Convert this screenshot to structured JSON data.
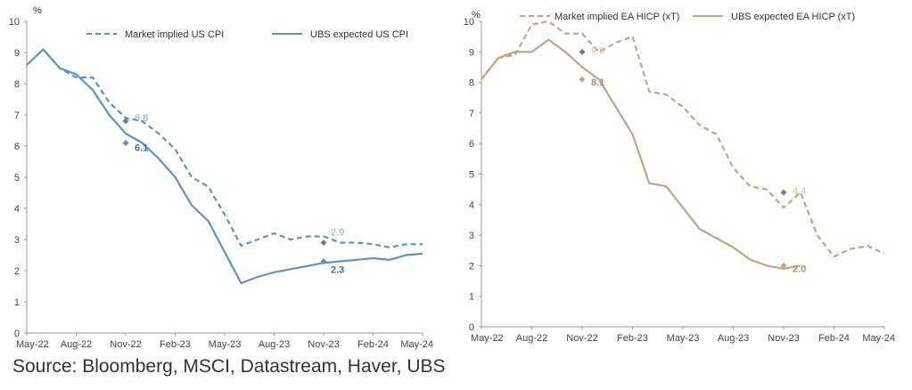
{
  "source": "Source: Bloomberg, MSCI, Datastream, Haver, UBS",
  "chart_data": [
    {
      "type": "line",
      "ylabel": "%",
      "ylim": [
        0,
        10
      ],
      "y_ticks": [
        0,
        1,
        2,
        3,
        4,
        5,
        6,
        7,
        8,
        9,
        10
      ],
      "x_tick_labels": [
        "May-22",
        "Aug-22",
        "Nov-22",
        "Feb-23",
        "May-23",
        "Aug-23",
        "Nov-23",
        "Feb-24",
        "May-24"
      ],
      "legend_position": "top",
      "grid": false,
      "colors": {
        "series": "#5b93c3",
        "label_light": "#7fa9ce",
        "label_dark": "#3b6f9e"
      },
      "series": [
        {
          "name": "Market implied US CPI",
          "style": "dashed",
          "values": [
            8.6,
            9.1,
            8.5,
            8.2,
            8.2,
            7.4,
            6.9,
            6.8,
            6.4,
            5.9,
            5.0,
            4.7,
            3.8,
            2.8,
            3.0,
            3.2,
            3.0,
            3.1,
            3.1,
            2.9,
            2.9,
            2.85,
            2.75,
            2.85,
            2.85
          ]
        },
        {
          "name": "UBS expected US CPI",
          "style": "solid",
          "values": [
            8.6,
            9.1,
            8.5,
            8.3,
            7.8,
            7.0,
            6.4,
            6.1,
            5.6,
            5.0,
            4.1,
            3.6,
            2.6,
            1.6,
            1.8,
            1.95,
            2.05,
            2.15,
            2.25,
            2.3,
            2.35,
            2.4,
            2.35,
            2.5,
            2.55
          ]
        }
      ],
      "annotations": [
        {
          "text": "6.8",
          "x": "Nov-22",
          "y": 6.8,
          "series": 0
        },
        {
          "text": "6.1",
          "x": "Nov-22",
          "y": 6.1,
          "series": 1
        },
        {
          "text": "2.9",
          "x": "Nov-23",
          "y": 2.9,
          "series": 0
        },
        {
          "text": "2.3",
          "x": "Nov-23",
          "y": 2.3,
          "series": 1
        }
      ]
    },
    {
      "type": "line",
      "ylabel": "%",
      "ylim": [
        0,
        10
      ],
      "y_ticks": [
        0,
        1,
        2,
        3,
        4,
        5,
        6,
        7,
        8,
        9,
        10
      ],
      "x_tick_labels": [
        "May-22",
        "Aug-22",
        "Nov-22",
        "Feb-23",
        "May-23",
        "Aug-23",
        "Nov-23",
        "Feb-24",
        "May-24"
      ],
      "legend_position": "top",
      "grid": false,
      "colors": {
        "series": "#c2a484",
        "label_light": "#d0b898",
        "label_dark": "#b08d68"
      },
      "series": [
        {
          "name": "Market implied EA HICP (xT)",
          "style": "dashed",
          "values": [
            8.1,
            8.8,
            8.9,
            9.9,
            10.0,
            9.6,
            9.6,
            9.0,
            9.3,
            9.5,
            7.7,
            7.6,
            7.2,
            6.6,
            6.3,
            5.2,
            4.6,
            4.5,
            3.9,
            4.4,
            3.0,
            2.3,
            2.55,
            2.65,
            2.4
          ]
        },
        {
          "name": "UBS expected EA HICP (xT)",
          "style": "solid",
          "values": [
            8.1,
            8.8,
            9.0,
            9.0,
            9.4,
            9.0,
            8.5,
            8.1,
            7.2,
            6.3,
            4.7,
            4.6,
            3.9,
            3.2,
            2.9,
            2.6,
            2.2,
            2.0,
            1.9,
            2.0
          ]
        }
      ],
      "annotations": [
        {
          "text": "9.0",
          "x": "Nov-22",
          "y": 9.0,
          "series": 0
        },
        {
          "text": "8.1",
          "x": "Nov-22",
          "y": 8.1,
          "series": 1
        },
        {
          "text": "4.4",
          "x": "Nov-23",
          "y": 4.4,
          "series": 0
        },
        {
          "text": "2.0",
          "x": "Nov-23",
          "y": 2.0,
          "series": 1
        }
      ]
    }
  ]
}
